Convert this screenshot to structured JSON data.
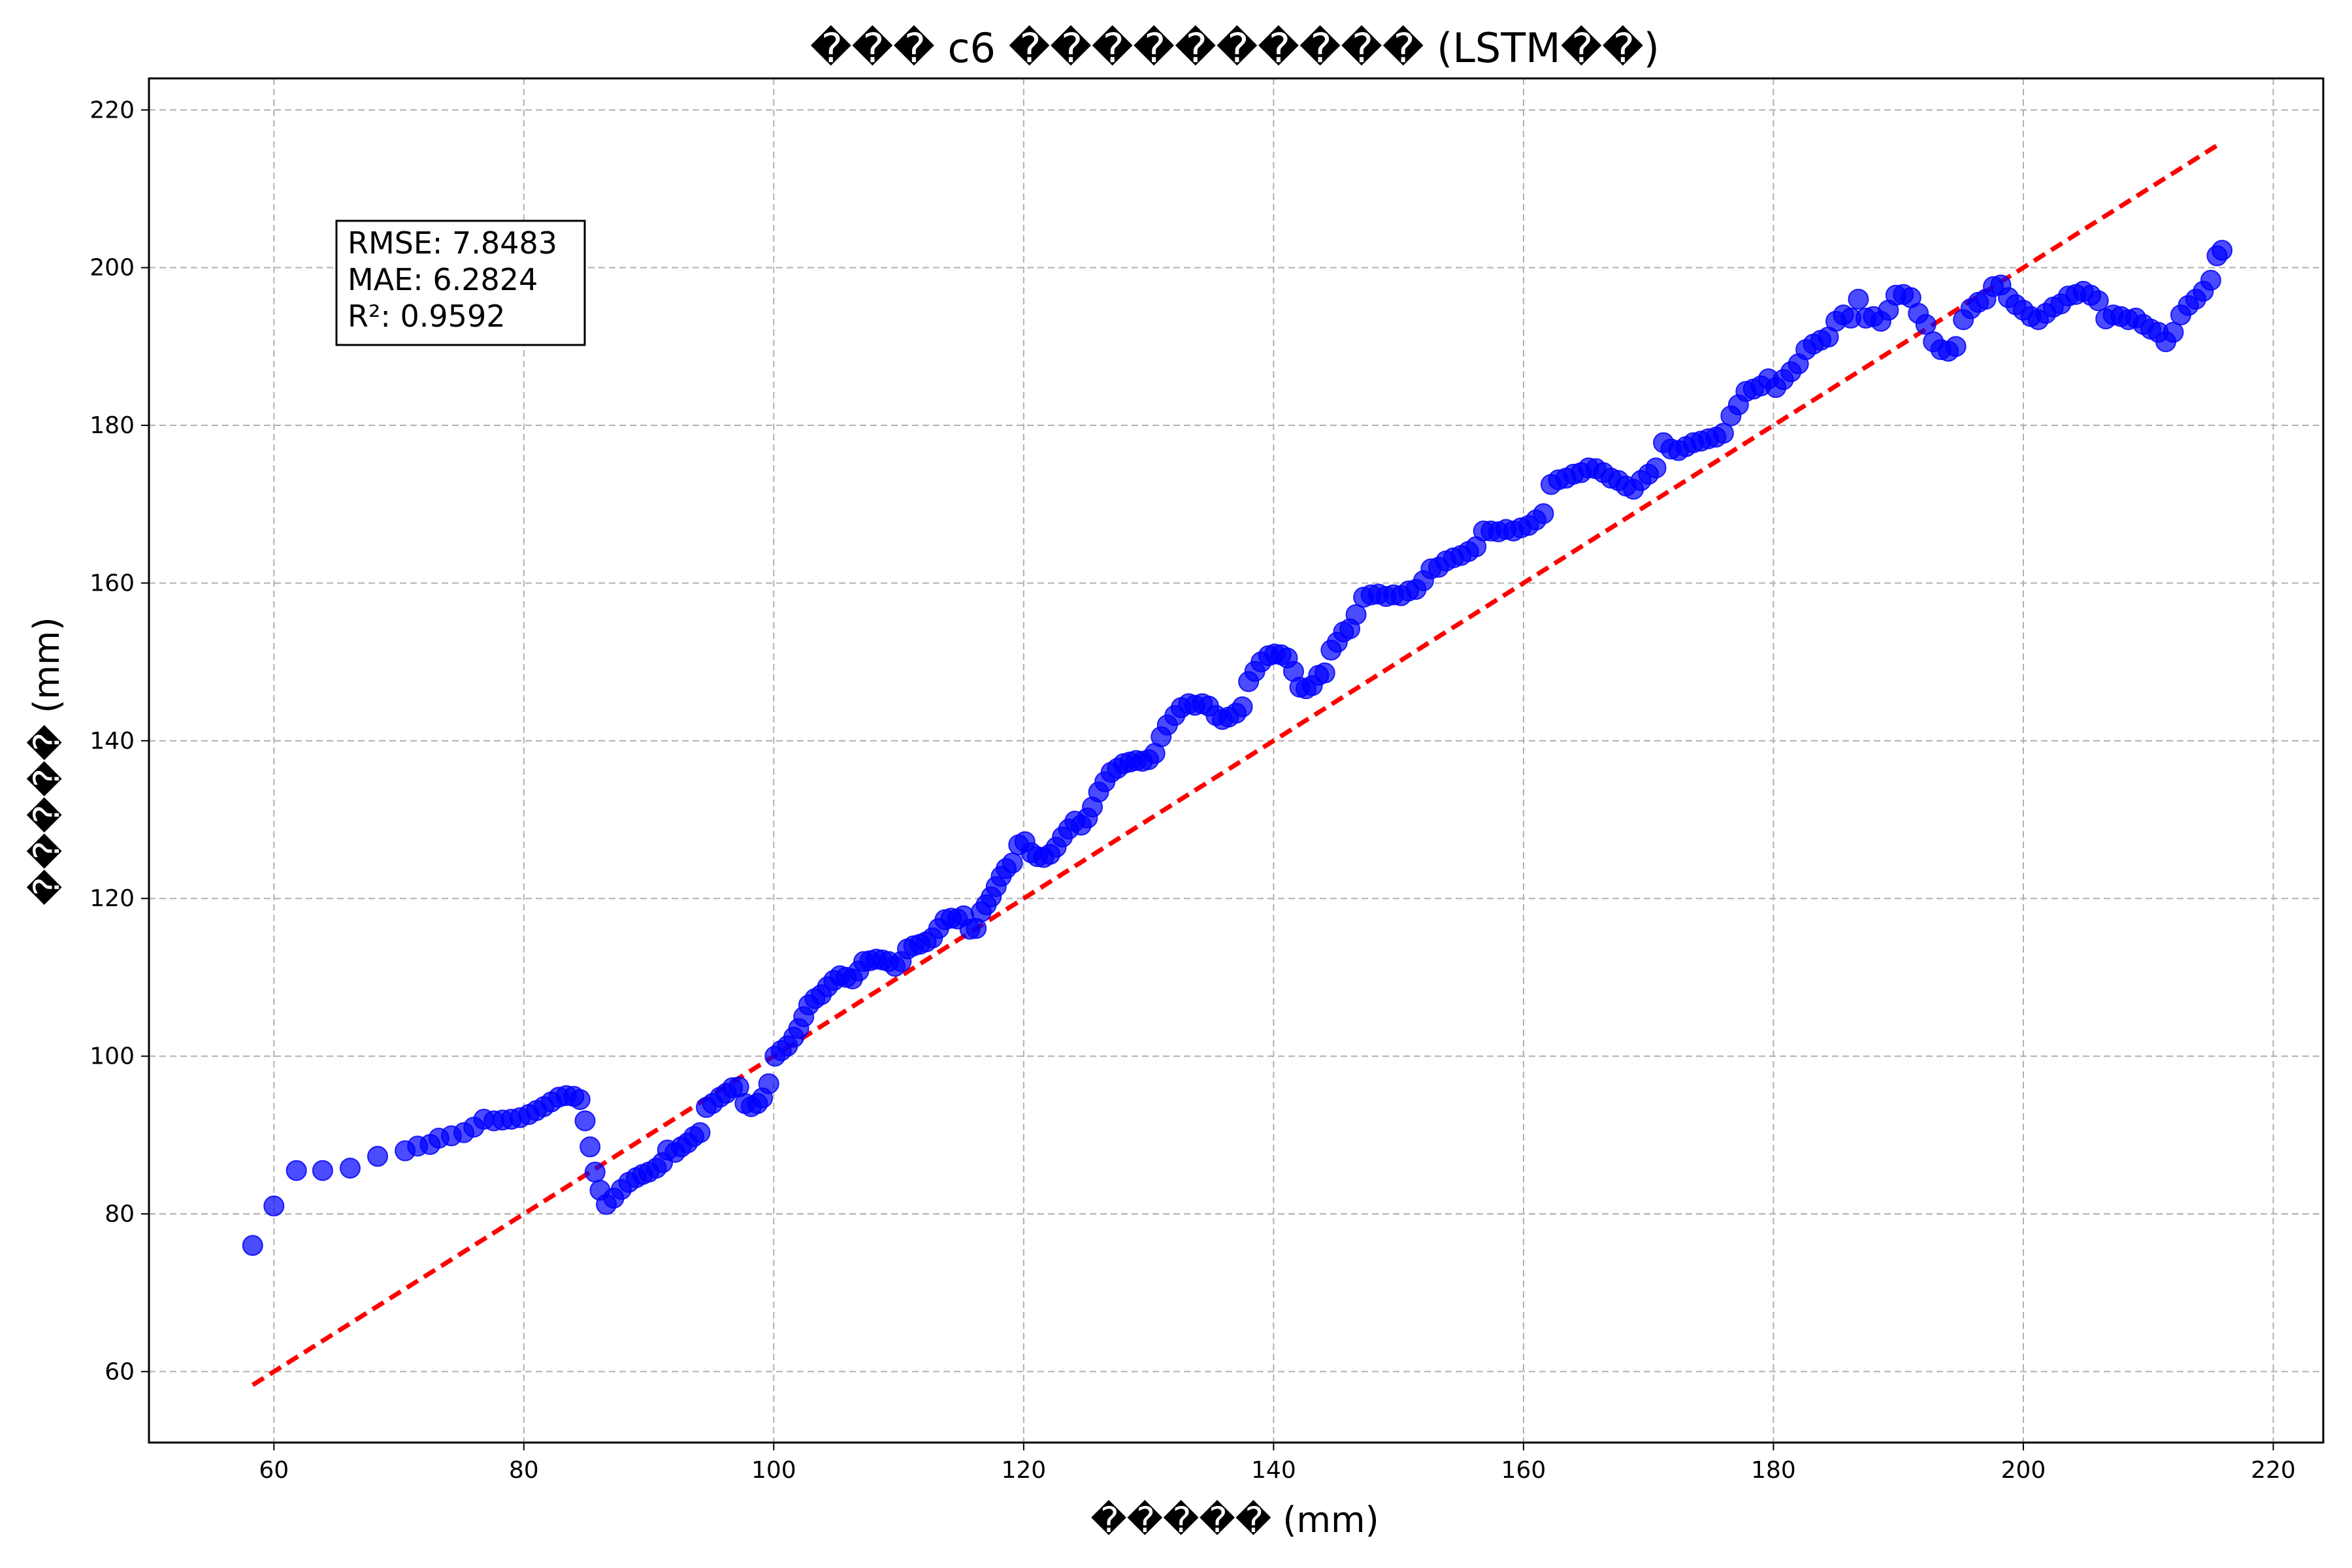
{
  "chart_data": {
    "type": "scatter",
    "title": "��� c6 ���������� (LSTM��)",
    "xlabel": "����� (mm)",
    "ylabel": "����� (mm)",
    "xlim": [
      50,
      224
    ],
    "ylim": [
      51,
      224
    ],
    "xticks": [
      60,
      80,
      100,
      120,
      140,
      160,
      180,
      200,
      220
    ],
    "yticks": [
      60,
      80,
      100,
      120,
      140,
      160,
      180,
      200,
      220
    ],
    "grid": true,
    "marker_color": "#0000ff",
    "reference_line": {
      "style": "dashed",
      "color": "#ff0000",
      "from": [
        58.3,
        58.3
      ],
      "to": [
        215.8,
        215.8
      ]
    },
    "metrics": [
      "RMSE: 7.8483",
      "MAE: 6.2824",
      "R²: 0.9592"
    ],
    "series": [
      {
        "points": [
          [
            58.3,
            76
          ],
          [
            60,
            81
          ],
          [
            61.8,
            85.5
          ],
          [
            63.9,
            85.5
          ],
          [
            66.1,
            85.8
          ],
          [
            68.3,
            87.3
          ],
          [
            70.5,
            88
          ],
          [
            71.5,
            88.6
          ],
          [
            72.5,
            88.8
          ],
          [
            73.2,
            89.6
          ],
          [
            74.2,
            89.9
          ],
          [
            75.2,
            90.3
          ],
          [
            76,
            91
          ],
          [
            76.8,
            92
          ],
          [
            77.6,
            91.8
          ],
          [
            78.3,
            91.9
          ],
          [
            79,
            92
          ],
          [
            79.7,
            92.2
          ],
          [
            80.4,
            92.6
          ],
          [
            81,
            93.1
          ],
          [
            81.6,
            93.6
          ],
          [
            82.2,
            94.2
          ],
          [
            82.8,
            94.8
          ],
          [
            83.4,
            95
          ],
          [
            84,
            94.9
          ],
          [
            84.5,
            94.5
          ],
          [
            84.9,
            91.8
          ],
          [
            85.3,
            88.5
          ],
          [
            85.7,
            85.3
          ],
          [
            86.1,
            83
          ],
          [
            86.6,
            81.2
          ],
          [
            87.2,
            82
          ],
          [
            87.8,
            83.1
          ],
          [
            88.4,
            84
          ],
          [
            89,
            84.6
          ],
          [
            89.5,
            85
          ],
          [
            90,
            85.3
          ],
          [
            90.6,
            85.8
          ],
          [
            91.1,
            86.5
          ],
          [
            91.5,
            88.1
          ],
          [
            92.1,
            87.8
          ],
          [
            92.6,
            88.5
          ],
          [
            93.1,
            89
          ],
          [
            93.6,
            89.8
          ],
          [
            94.1,
            90.3
          ],
          [
            94.6,
            93.5
          ],
          [
            95.1,
            94
          ],
          [
            95.7,
            94.8
          ],
          [
            96.2,
            95.3
          ],
          [
            96.7,
            96
          ],
          [
            97.2,
            96.1
          ],
          [
            97.7,
            94
          ],
          [
            98.2,
            93.6
          ],
          [
            98.7,
            94
          ],
          [
            99.1,
            94.7
          ],
          [
            99.6,
            96.5
          ],
          [
            100.1,
            100
          ],
          [
            100.6,
            100.7
          ],
          [
            101.1,
            101.3
          ],
          [
            101.6,
            102.4
          ],
          [
            102,
            103.5
          ],
          [
            102.4,
            105
          ],
          [
            102.8,
            106.5
          ],
          [
            103.3,
            107.3
          ],
          [
            103.8,
            107.8
          ],
          [
            104.3,
            108.8
          ],
          [
            104.8,
            109.6
          ],
          [
            105.3,
            110.2
          ],
          [
            105.8,
            110
          ],
          [
            106.3,
            109.8
          ],
          [
            106.8,
            110.8
          ],
          [
            107.2,
            112
          ],
          [
            107.7,
            112.1
          ],
          [
            108.2,
            112.3
          ],
          [
            108.7,
            112.2
          ],
          [
            109.2,
            112
          ],
          [
            109.7,
            111.4
          ],
          [
            110.2,
            112
          ],
          [
            110.7,
            113.6
          ],
          [
            111.2,
            114
          ],
          [
            111.7,
            114.2
          ],
          [
            112.2,
            114.5
          ],
          [
            112.7,
            115
          ],
          [
            113.2,
            116.2
          ],
          [
            113.7,
            117.3
          ],
          [
            114.2,
            117.5
          ],
          [
            114.7,
            117.4
          ],
          [
            115.2,
            117.8
          ],
          [
            115.7,
            116.1
          ],
          [
            116.2,
            116.2
          ],
          [
            116.6,
            118.3
          ],
          [
            117,
            119.2
          ],
          [
            117.4,
            120.2
          ],
          [
            117.8,
            121.5
          ],
          [
            118.2,
            122.8
          ],
          [
            118.6,
            123.8
          ],
          [
            119.1,
            124.5
          ],
          [
            119.6,
            126.8
          ],
          [
            120.1,
            127.2
          ],
          [
            120.6,
            125.8
          ],
          [
            121.1,
            125.3
          ],
          [
            121.6,
            125.2
          ],
          [
            122.1,
            125.6
          ],
          [
            122.6,
            126.5
          ],
          [
            123.1,
            127.8
          ],
          [
            123.6,
            128.8
          ],
          [
            124.1,
            129.8
          ],
          [
            124.6,
            129.3
          ],
          [
            125.1,
            130.2
          ],
          [
            125.5,
            131.6
          ],
          [
            126,
            133.5
          ],
          [
            126.5,
            134.8
          ],
          [
            127,
            136
          ],
          [
            127.5,
            136.5
          ],
          [
            128,
            137.1
          ],
          [
            128.5,
            137.3
          ],
          [
            129,
            137.5
          ],
          [
            129.5,
            137.4
          ],
          [
            130,
            137.6
          ],
          [
            130.5,
            138.4
          ],
          [
            131,
            140.5
          ],
          [
            131.5,
            142
          ],
          [
            132.1,
            143.2
          ],
          [
            132.6,
            144.2
          ],
          [
            133.2,
            144.7
          ],
          [
            133.7,
            144.5
          ],
          [
            134.3,
            144.7
          ],
          [
            134.8,
            144.4
          ],
          [
            135.4,
            143.2
          ],
          [
            135.9,
            142.7
          ],
          [
            136.4,
            143
          ],
          [
            137,
            143.5
          ],
          [
            137.5,
            144.3
          ],
          [
            138,
            147.5
          ],
          [
            138.5,
            148.8
          ],
          [
            139,
            150
          ],
          [
            139.6,
            150.8
          ],
          [
            140.1,
            151
          ],
          [
            140.6,
            150.9
          ],
          [
            141.1,
            150.5
          ],
          [
            141.6,
            148.8
          ],
          [
            142.1,
            146.8
          ],
          [
            142.6,
            146.6
          ],
          [
            143.1,
            147
          ],
          [
            143.6,
            148.3
          ],
          [
            144.1,
            148.6
          ],
          [
            144.6,
            151.5
          ],
          [
            145.1,
            152.5
          ],
          [
            145.6,
            153.8
          ],
          [
            146.1,
            154.2
          ],
          [
            146.6,
            156
          ],
          [
            147.2,
            158.2
          ],
          [
            147.8,
            158.5
          ],
          [
            148.4,
            158.6
          ],
          [
            149,
            158.3
          ],
          [
            149.6,
            158.5
          ],
          [
            150.2,
            158.4
          ],
          [
            150.8,
            159
          ],
          [
            151.4,
            159.2
          ],
          [
            152,
            160.3
          ],
          [
            152.6,
            161.8
          ],
          [
            153.2,
            162
          ],
          [
            153.8,
            162.8
          ],
          [
            154.4,
            163.2
          ],
          [
            155,
            163.5
          ],
          [
            155.6,
            164
          ],
          [
            156.2,
            164.6
          ],
          [
            156.8,
            166.6
          ],
          [
            157.4,
            166.6
          ],
          [
            158,
            166.5
          ],
          [
            158.6,
            166.8
          ],
          [
            159.2,
            166.6
          ],
          [
            159.8,
            167
          ],
          [
            160.4,
            167.3
          ],
          [
            161,
            168
          ],
          [
            161.6,
            168.8
          ],
          [
            162.2,
            172.5
          ],
          [
            162.8,
            173.1
          ],
          [
            163.4,
            173.3
          ],
          [
            164,
            173.8
          ],
          [
            164.6,
            174
          ],
          [
            165.2,
            174.6
          ],
          [
            165.8,
            174.5
          ],
          [
            166.4,
            174
          ],
          [
            167,
            173.3
          ],
          [
            167.6,
            173
          ],
          [
            168.2,
            172.3
          ],
          [
            168.8,
            171.9
          ],
          [
            169.4,
            173
          ],
          [
            170,
            173.8
          ],
          [
            170.6,
            174.6
          ],
          [
            171.2,
            177.8
          ],
          [
            171.8,
            177
          ],
          [
            172.4,
            176.8
          ],
          [
            173,
            177.3
          ],
          [
            173.6,
            177.8
          ],
          [
            174.2,
            178
          ],
          [
            174.8,
            178.3
          ],
          [
            175.4,
            178.5
          ],
          [
            176,
            179
          ],
          [
            176.6,
            181.2
          ],
          [
            177.2,
            182.6
          ],
          [
            177.8,
            184.3
          ],
          [
            178.4,
            184.6
          ],
          [
            179,
            185
          ],
          [
            179.6,
            185.9
          ],
          [
            180.2,
            184.8
          ],
          [
            180.8,
            185.8
          ],
          [
            181.4,
            186.8
          ],
          [
            182,
            187.8
          ],
          [
            182.6,
            189.6
          ],
          [
            183.2,
            190.3
          ],
          [
            183.8,
            190.8
          ],
          [
            184.4,
            191.2
          ],
          [
            185,
            193.2
          ],
          [
            185.6,
            194
          ],
          [
            186.2,
            193.6
          ],
          [
            186.8,
            196
          ],
          [
            187.4,
            193.6
          ],
          [
            188,
            193.8
          ],
          [
            188.6,
            193.2
          ],
          [
            189.2,
            194.6
          ],
          [
            189.8,
            196.5
          ],
          [
            190.4,
            196.6
          ],
          [
            191,
            196.2
          ],
          [
            191.6,
            194.2
          ],
          [
            192.2,
            192.8
          ],
          [
            192.8,
            190.6
          ],
          [
            193.4,
            189.6
          ],
          [
            194,
            189.4
          ],
          [
            194.6,
            190
          ],
          [
            195.2,
            193.4
          ],
          [
            195.8,
            194.8
          ],
          [
            196.4,
            195.6
          ],
          [
            197,
            196
          ],
          [
            197.6,
            197.6
          ],
          [
            198.2,
            197.8
          ],
          [
            198.8,
            196.2
          ],
          [
            199.4,
            195.3
          ],
          [
            200,
            194.6
          ],
          [
            200.6,
            193.8
          ],
          [
            201.2,
            193.4
          ],
          [
            201.8,
            194.2
          ],
          [
            202.4,
            195
          ],
          [
            203,
            195.4
          ],
          [
            203.6,
            196.4
          ],
          [
            204.2,
            196.6
          ],
          [
            204.8,
            197
          ],
          [
            205.4,
            196.5
          ],
          [
            206,
            195.8
          ],
          [
            206.6,
            193.5
          ],
          [
            207.2,
            194
          ],
          [
            207.8,
            193.8
          ],
          [
            208.4,
            193.4
          ],
          [
            209,
            193.6
          ],
          [
            209.6,
            192.8
          ],
          [
            210.2,
            192.2
          ],
          [
            210.8,
            191.8
          ],
          [
            211.4,
            190.6
          ],
          [
            212,
            191.8
          ],
          [
            212.6,
            194
          ],
          [
            213.2,
            195.2
          ],
          [
            213.8,
            196
          ],
          [
            214.4,
            197
          ],
          [
            215,
            198.4
          ],
          [
            215.5,
            201.5
          ],
          [
            215.9,
            202.2
          ]
        ]
      }
    ]
  }
}
